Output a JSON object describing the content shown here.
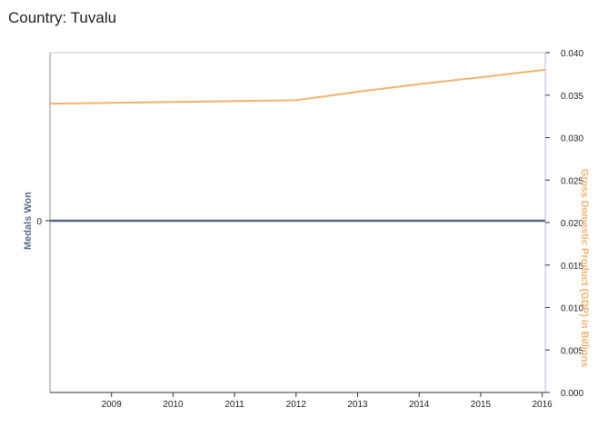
{
  "header": {
    "title": "Country: Tuvalu"
  },
  "chart_data": {
    "type": "line",
    "x_ticks": [
      2009,
      2010,
      2011,
      2012,
      2013,
      2014,
      2015,
      2016
    ],
    "xlim": [
      2008.0,
      2016.05
    ],
    "left_axis": {
      "label": "Medals Won",
      "ticks": [
        "0"
      ],
      "color": "#5a6c87"
    },
    "right_axis": {
      "label": "Gross Domestic Product (GDP) in Billions",
      "ylim": [
        0,
        0.04
      ],
      "ticks": [
        "0.000",
        "0.005",
        "0.010",
        "0.015",
        "0.020",
        "0.025",
        "0.030",
        "0.035",
        "0.040"
      ],
      "color": "#f1b36e"
    },
    "series": [
      {
        "axis": "left",
        "color": "#5a6c87",
        "x": [
          2008.0,
          2016.05
        ],
        "y": [
          0,
          0
        ]
      },
      {
        "axis": "right",
        "color": "#f1b36e",
        "x": [
          2008.0,
          2009,
          2010,
          2011,
          2012,
          2013,
          2014,
          2015,
          2016.05
        ],
        "y": [
          0.034,
          0.0341,
          0.0342,
          0.0343,
          0.0344,
          0.0354,
          0.0363,
          0.0371,
          0.038
        ]
      }
    ]
  }
}
